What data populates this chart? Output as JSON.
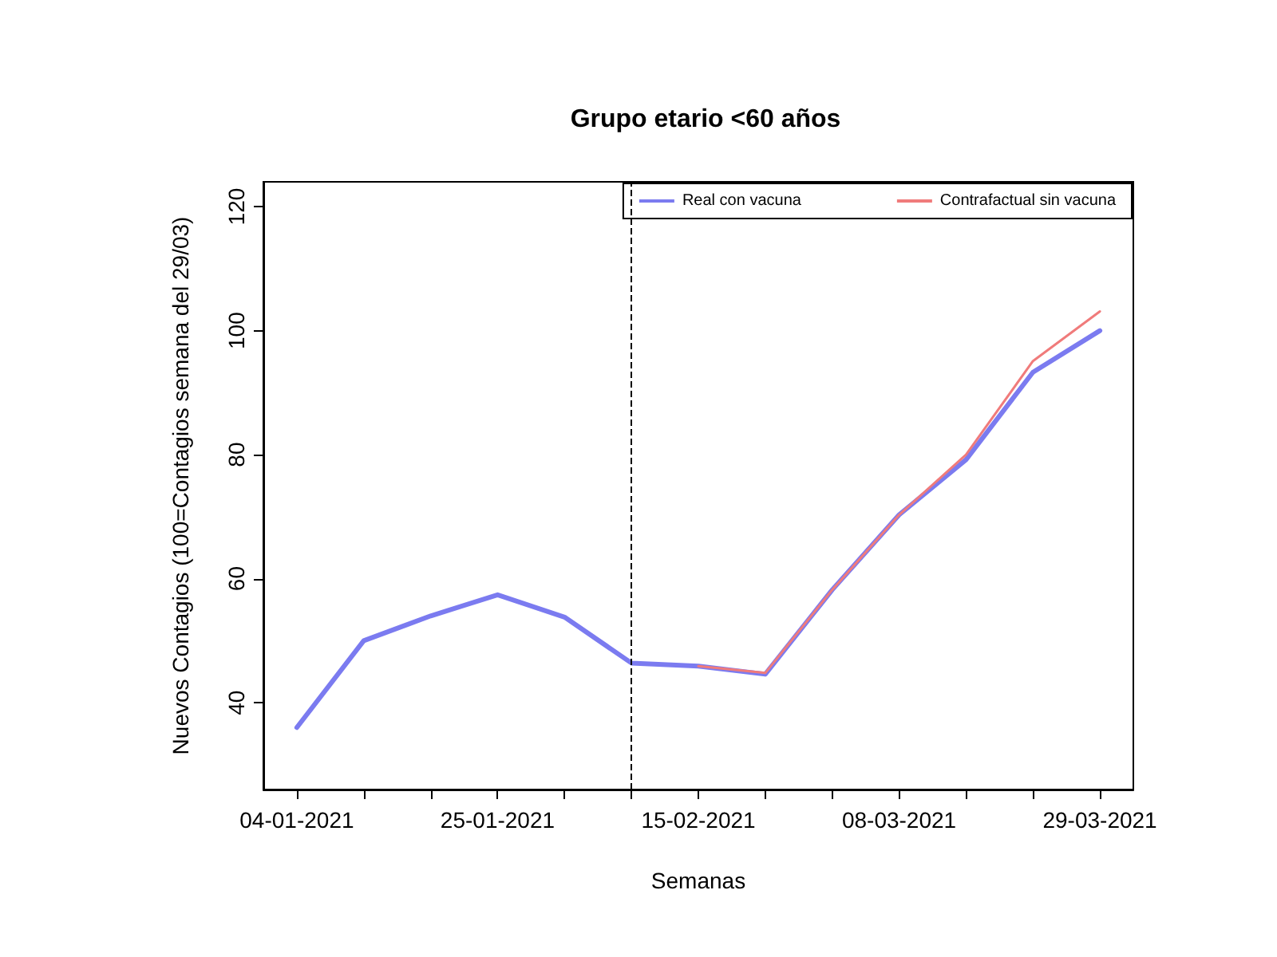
{
  "chart_data": {
    "type": "line",
    "title": "Grupo etario <60 años",
    "xlabel": "Semanas",
    "ylabel": "Nuevos Contagios (100=Contagios semana del 29/03)",
    "x": [
      "2021-01-04",
      "2021-01-11",
      "2021-01-18",
      "2021-01-25",
      "2021-02-01",
      "2021-02-08",
      "2021-02-15",
      "2021-02-22",
      "2021-03-01",
      "2021-03-08",
      "2021-03-15",
      "2021-03-22",
      "2021-03-29"
    ],
    "series": [
      {
        "name": "Real con vacuna",
        "color": "#7b7bf0",
        "values": [
          36,
          50,
          54,
          57.4,
          53.8,
          46.4,
          45.9,
          44.6,
          58.2,
          70.3,
          79.2,
          93.3,
          100
        ]
      },
      {
        "name": "Contrafactual sin vacuna",
        "color": "#f07b7b",
        "values": [
          null,
          null,
          null,
          null,
          null,
          null,
          45.9,
          44.8,
          58.2,
          70.3,
          80,
          95.1,
          103.1
        ]
      }
    ],
    "xlim": [
      "2020-12-31T12:00",
      "2021-04-01T12:00"
    ],
    "xticks": [
      {
        "value": "2021-01-04",
        "label": "04-01-2021"
      },
      {
        "value": "2021-01-11",
        "label": null
      },
      {
        "value": "2021-01-18",
        "label": null
      },
      {
        "value": "2021-01-25",
        "label": "25-01-2021"
      },
      {
        "value": "2021-02-01",
        "label": null
      },
      {
        "value": "2021-02-08",
        "label": null
      },
      {
        "value": "2021-02-15",
        "label": "15-02-2021"
      },
      {
        "value": "2021-02-22",
        "label": null
      },
      {
        "value": "2021-03-01",
        "label": null
      },
      {
        "value": "2021-03-08",
        "label": "08-03-2021"
      },
      {
        "value": "2021-03-15",
        "label": null
      },
      {
        "value": "2021-03-22",
        "label": null
      },
      {
        "value": "2021-03-29",
        "label": "29-03-2021"
      }
    ],
    "ylim": [
      26,
      124
    ],
    "yticks": [
      40,
      60,
      80,
      100,
      120
    ],
    "ref_lines": [
      {
        "axis": "x",
        "value": "2021-02-08",
        "color": "#000000",
        "line_style": "dashed"
      }
    ],
    "legend": "top right",
    "grid": false,
    "marker": "none",
    "line_style": "solid"
  }
}
